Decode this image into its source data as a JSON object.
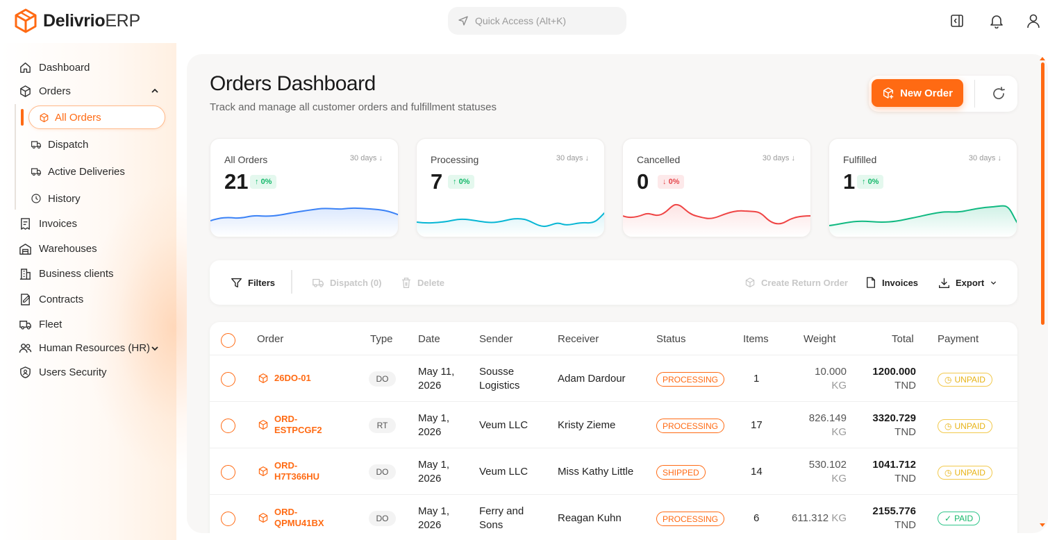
{
  "app": {
    "brand_bold": "Delivrio",
    "brand_light": "ERP"
  },
  "search": {
    "placeholder": "Quick Access (Alt+K)"
  },
  "sidebar": {
    "items": [
      {
        "label": "Dashboard",
        "icon": "home-icon"
      },
      {
        "label": "Orders",
        "icon": "box-icon"
      },
      {
        "label": "Invoices",
        "icon": "invoice-icon"
      },
      {
        "label": "Warehouses",
        "icon": "warehouse-icon"
      },
      {
        "label": "Business clients",
        "icon": "building-icon"
      },
      {
        "label": "Contracts",
        "icon": "contract-icon"
      },
      {
        "label": "Fleet",
        "icon": "truck-icon"
      },
      {
        "label": "Human Resources (HR)",
        "icon": "users-icon"
      },
      {
        "label": "Users Security",
        "icon": "shield-user-icon"
      }
    ],
    "orders_sub": [
      {
        "label": "All Orders",
        "active": true
      },
      {
        "label": "Dispatch"
      },
      {
        "label": "Active Deliveries"
      },
      {
        "label": "History"
      }
    ]
  },
  "header": {
    "title": "Orders Dashboard",
    "subtitle": "Track and manage all customer orders and fulfillment statuses",
    "new_order": "New Order"
  },
  "stats": [
    {
      "label": "All Orders",
      "range": "30 days",
      "value": "21",
      "change": "0%",
      "trend": "up",
      "color": "#3b82f6"
    },
    {
      "label": "Processing",
      "range": "30 days",
      "value": "7",
      "change": "0%",
      "trend": "up",
      "color": "#06b6d4"
    },
    {
      "label": "Cancelled",
      "range": "30 days",
      "value": "0",
      "change": "0%",
      "trend": "down",
      "color": "#ef4444"
    },
    {
      "label": "Fulfilled",
      "range": "30 days",
      "value": "1",
      "change": "0%",
      "trend": "up",
      "color": "#10b981"
    }
  ],
  "toolbar": {
    "filters": "Filters",
    "dispatch": "Dispatch (0)",
    "delete": "Delete",
    "create_return": "Create Return Order",
    "invoices": "Invoices",
    "export": "Export"
  },
  "table": {
    "headers": {
      "order": "Order",
      "type": "Type",
      "date": "Date",
      "sender": "Sender",
      "receiver": "Receiver",
      "status": "Status",
      "items": "Items",
      "weight": "Weight",
      "total": "Total",
      "payment": "Payment"
    },
    "rows": [
      {
        "order_l1": "26DO-01",
        "order_l2": "",
        "type": "DO",
        "date_l1": "May 11,",
        "date_l2": "2026",
        "sender_l1": "Sousse",
        "sender_l2": "Logistics",
        "receiver": "Adam Dardour",
        "status": "PROCESSING",
        "items": "1",
        "weight": "10.000",
        "weight_unit": "KG",
        "total": "1200.000",
        "currency": "TND",
        "payment": "UNPAID"
      },
      {
        "order_l1": "ORD-",
        "order_l2": "ESTPCGF2",
        "type": "RT",
        "date_l1": "May 1,",
        "date_l2": "2026",
        "sender_l1": "Veum LLC",
        "sender_l2": "",
        "receiver": "Kristy Zieme",
        "status": "PROCESSING",
        "items": "17",
        "weight": "826.149",
        "weight_unit": "KG",
        "total": "3320.729",
        "currency": "TND",
        "payment": "UNPAID"
      },
      {
        "order_l1": "ORD-",
        "order_l2": "H7T366HU",
        "type": "DO",
        "date_l1": "May 1,",
        "date_l2": "2026",
        "sender_l1": "Veum LLC",
        "sender_l2": "",
        "receiver": "Miss Kathy Little",
        "status": "SHIPPED",
        "items": "14",
        "weight": "530.102",
        "weight_unit": "KG",
        "total": "1041.712",
        "currency": "TND",
        "payment": "UNPAID"
      },
      {
        "order_l1": "ORD-",
        "order_l2": "QPMU41BX",
        "type": "DO",
        "date_l1": "May 1,",
        "date_l2": "2026",
        "sender_l1": "Ferry and",
        "sender_l2": "Sons",
        "receiver": "Reagan Kuhn",
        "status": "PROCESSING",
        "items": "6",
        "weight": "611.312",
        "weight_unit": "KG",
        "total": "2155.776",
        "currency": "TND",
        "payment": "PAID"
      }
    ]
  },
  "colors": {
    "accent": "#ff6a13"
  }
}
